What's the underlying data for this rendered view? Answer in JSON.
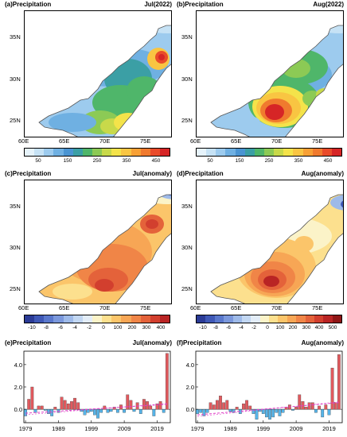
{
  "panels": {
    "a": {
      "title": "(a)Precipitation",
      "period": "Jul(2022)"
    },
    "b": {
      "title": "(b)Precipitation",
      "period": "Aug(2022)"
    },
    "c": {
      "title": "(c)Precipitation",
      "period": "Jul(anomaly)"
    },
    "d": {
      "title": "(d)Precipitation",
      "period": "Aug(anomaly)"
    },
    "e": {
      "title": "(e)Precipitation",
      "period": "Jul(anomaly)"
    },
    "f": {
      "title": "(f)Precipitation",
      "period": "Aug(anomaly)"
    }
  },
  "map_axes": {
    "lat_labels": [
      "35N",
      "30N",
      "25N"
    ],
    "lon_labels": [
      "60E",
      "65E",
      "70E",
      "75E"
    ]
  },
  "colorbars": {
    "precip": {
      "labels": [
        "50",
        "150",
        "250",
        "350",
        "450"
      ],
      "colors": [
        "#e6f3fb",
        "#c6e2f5",
        "#9dcbee",
        "#6fb0e2",
        "#4a94d2",
        "#3b9fa5",
        "#4fb66a",
        "#8cca55",
        "#c8d94a",
        "#f4e34a",
        "#f9c542",
        "#f7a035",
        "#f07a2e",
        "#e94b2a",
        "#d62526"
      ]
    },
    "anom_jul": {
      "labels": [
        "-10",
        "-8",
        "-6",
        "-4",
        "-2",
        "0",
        "100",
        "200",
        "300",
        "400"
      ],
      "colors": [
        "#2b3b96",
        "#3f58b6",
        "#5a78cc",
        "#7b98dc",
        "#9ebae9",
        "#c2d7f2",
        "#e3edf8",
        "#fbf3c8",
        "#fce08e",
        "#fbc56a",
        "#f7a655",
        "#f08547",
        "#e4623a",
        "#d23f2e",
        "#b92424"
      ]
    },
    "anom_aug": {
      "labels": [
        "-10",
        "-8",
        "-6",
        "-4",
        "-2",
        "0",
        "100",
        "200",
        "300",
        "400",
        "500"
      ],
      "colors": [
        "#2b3b96",
        "#3f58b6",
        "#5a78cc",
        "#7b98dc",
        "#9ebae9",
        "#c2d7f2",
        "#e3edf8",
        "#fbf3c8",
        "#fce08e",
        "#fbc56a",
        "#f7a655",
        "#f08547",
        "#e4623a",
        "#d23f2e",
        "#b92424",
        "#8f1616"
      ]
    }
  },
  "chart_data": [
    {
      "type": "bar",
      "panel": "e",
      "x": [
        1979,
        1980,
        1981,
        1982,
        1983,
        1984,
        1985,
        1986,
        1987,
        1988,
        1989,
        1990,
        1991,
        1992,
        1993,
        1994,
        1995,
        1996,
        1997,
        1998,
        1999,
        2000,
        2001,
        2002,
        2003,
        2004,
        2005,
        2006,
        2007,
        2008,
        2009,
        2010,
        2011,
        2012,
        2013,
        2014,
        2015,
        2016,
        2017,
        2018,
        2019,
        2020,
        2021,
        2022
      ],
      "values": [
        -0.6,
        0.9,
        2.0,
        -0.3,
        0.3,
        0.3,
        -0.1,
        -0.4,
        -0.6,
        0.2,
        -0.3,
        1.1,
        0.8,
        0.5,
        0.7,
        1.0,
        0.6,
        -0.2,
        -0.5,
        -0.3,
        -0.2,
        -0.5,
        -0.8,
        -0.3,
        0.3,
        -0.3,
        -0.2,
        0.2,
        -0.3,
        0.4,
        -0.3,
        1.3,
        0.8,
        -0.2,
        0.6,
        -0.4,
        0.9,
        0.7,
        0.3,
        -0.6,
        0.5,
        0.7,
        -0.3,
        5.0
      ],
      "xticks": [
        "1979",
        "1989",
        "1999",
        "2009",
        "2019"
      ],
      "yticks": [
        "4.0",
        "2.0",
        "0.0"
      ],
      "ylim": [
        -1.2,
        5.2
      ],
      "trend": [
        [
          1979,
          -0.35
        ],
        [
          2022,
          0.45
        ]
      ],
      "positive_color": "#e25a5e",
      "negative_color": "#56b4e9",
      "trend_color": "#e040c8"
    },
    {
      "type": "bar",
      "panel": "f",
      "x": [
        1979,
        1980,
        1981,
        1982,
        1983,
        1984,
        1985,
        1986,
        1987,
        1988,
        1989,
        1990,
        1991,
        1992,
        1993,
        1994,
        1995,
        1996,
        1997,
        1998,
        1999,
        2000,
        2001,
        2002,
        2003,
        2004,
        2005,
        2006,
        2007,
        2008,
        2009,
        2010,
        2011,
        2012,
        2013,
        2014,
        2015,
        2016,
        2017,
        2018,
        2019,
        2020,
        2021,
        2022
      ],
      "values": [
        -0.4,
        -0.3,
        -0.6,
        -0.3,
        0.6,
        0.4,
        0.8,
        1.2,
        0.6,
        0.8,
        -0.2,
        -0.3,
        0.2,
        -0.4,
        0.5,
        0.8,
        0.3,
        -0.4,
        -0.9,
        -0.2,
        -0.4,
        -0.7,
        -0.9,
        -0.7,
        -0.3,
        -0.6,
        -0.3,
        0.2,
        0.4,
        -0.1,
        0.2,
        1.3,
        0.7,
        0.2,
        0.6,
        0.6,
        -0.3,
        0.3,
        -0.7,
        0.4,
        -0.5,
        3.7,
        0.6,
        4.9
      ],
      "xticks": [
        "1979",
        "1989",
        "1999",
        "2009",
        "2019"
      ],
      "yticks": [
        "4.0",
        "2.0",
        "0.0"
      ],
      "ylim": [
        -1.2,
        5.2
      ],
      "trend": [
        [
          1979,
          -0.5
        ],
        [
          2022,
          0.6
        ]
      ],
      "positive_color": "#e25a5e",
      "negative_color": "#56b4e9",
      "trend_color": "#e040c8"
    }
  ]
}
